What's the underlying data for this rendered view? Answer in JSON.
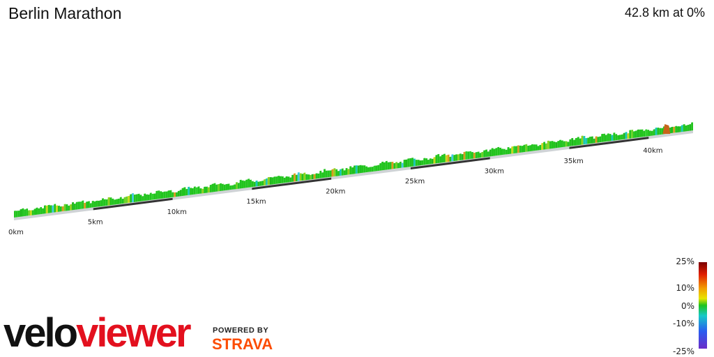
{
  "header": {
    "title": "Berlin Marathon",
    "summary": "42.8 km at 0%"
  },
  "chart_data": {
    "type": "area",
    "title": "Berlin Marathon",
    "distance_km": 42.8,
    "avg_gradient_percent": 0,
    "x_ticks": [
      "0km",
      "5km",
      "10km",
      "15km",
      "20km",
      "25km",
      "30km",
      "35km",
      "40km"
    ],
    "x_tick_values": [
      0,
      5,
      10,
      15,
      20,
      25,
      30,
      35,
      40
    ],
    "gradient_scale": {
      "labels": [
        "25%",
        "10%",
        "0%",
        "-10%",
        "-25%"
      ],
      "values": [
        25,
        10,
        0,
        -10,
        -25
      ],
      "colors": [
        "#7a0000",
        "#e01e00",
        "#f29b00",
        "#e8e400",
        "#1ec21e",
        "#18c8c8",
        "#2a5cf0",
        "#6a2cc8"
      ]
    },
    "profile_color_dominant": "#22c41e"
  },
  "branding": {
    "velo": "velo",
    "viewer": "viewer",
    "powered_by": "POWERED BY",
    "strava": "STRAVA"
  }
}
